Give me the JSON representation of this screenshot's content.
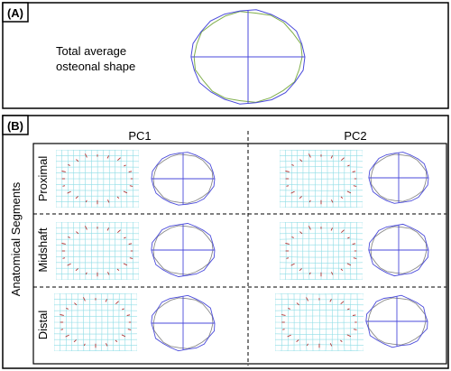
{
  "panelA": {
    "tag": "(A)",
    "caption_line1": "Total average",
    "caption_line2": "osteonal shape"
  },
  "panelB": {
    "tag": "(B)",
    "column_headers": [
      "PC1",
      "PC2"
    ],
    "side_label": "Anatomical Segments",
    "rows": [
      "Proximal",
      "Midshaft",
      "Distal"
    ]
  },
  "colors": {
    "outline": "#4a4adb",
    "outline_alt": "#7fae4a",
    "grid": "#8fdde6",
    "mean_shape": "#8a8a8a",
    "marker": "#b03030"
  }
}
